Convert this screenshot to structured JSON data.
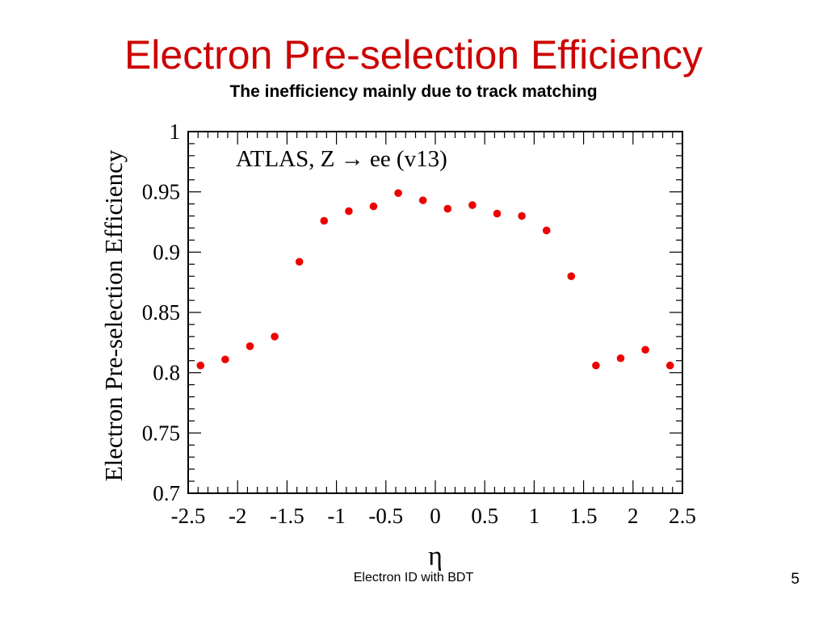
{
  "slide": {
    "title": "Electron Pre-selection Efficiency",
    "subtitle": "The inefficiency mainly due to track matching",
    "footer_text": "Electron ID with BDT",
    "page_number": "5",
    "title_color": "#cc0000"
  },
  "chart_data": {
    "type": "scatter",
    "annotation": "ATLAS, Z → ee (v13)",
    "xlabel": "η",
    "ylabel": "Electron Pre-selection Efficiency",
    "xlim": [
      -2.5,
      2.5
    ],
    "ylim": [
      0.7,
      1.0
    ],
    "x_ticks": [
      "-2.5",
      "-2",
      "-1.5",
      "-1",
      "-0.5",
      "0",
      "0.5",
      "1",
      "1.5",
      "2",
      "2.5"
    ],
    "y_ticks": [
      "0.7",
      "0.75",
      "0.8",
      "0.85",
      "0.9",
      "0.95",
      "1"
    ],
    "marker_color": "#ee0000",
    "series": [
      {
        "x": [
          -2.375,
          -2.125,
          -1.875,
          -1.625,
          -1.375,
          -1.125,
          -0.875,
          -0.625,
          -0.375,
          -0.125,
          0.125,
          0.375,
          0.625,
          0.875,
          1.125,
          1.375,
          1.625,
          1.875,
          2.125,
          2.375
        ],
        "y": [
          0.806,
          0.811,
          0.822,
          0.83,
          0.892,
          0.926,
          0.934,
          0.938,
          0.949,
          0.943,
          0.936,
          0.939,
          0.932,
          0.93,
          0.918,
          0.88,
          0.806,
          0.812,
          0.819,
          0.806
        ]
      }
    ]
  }
}
